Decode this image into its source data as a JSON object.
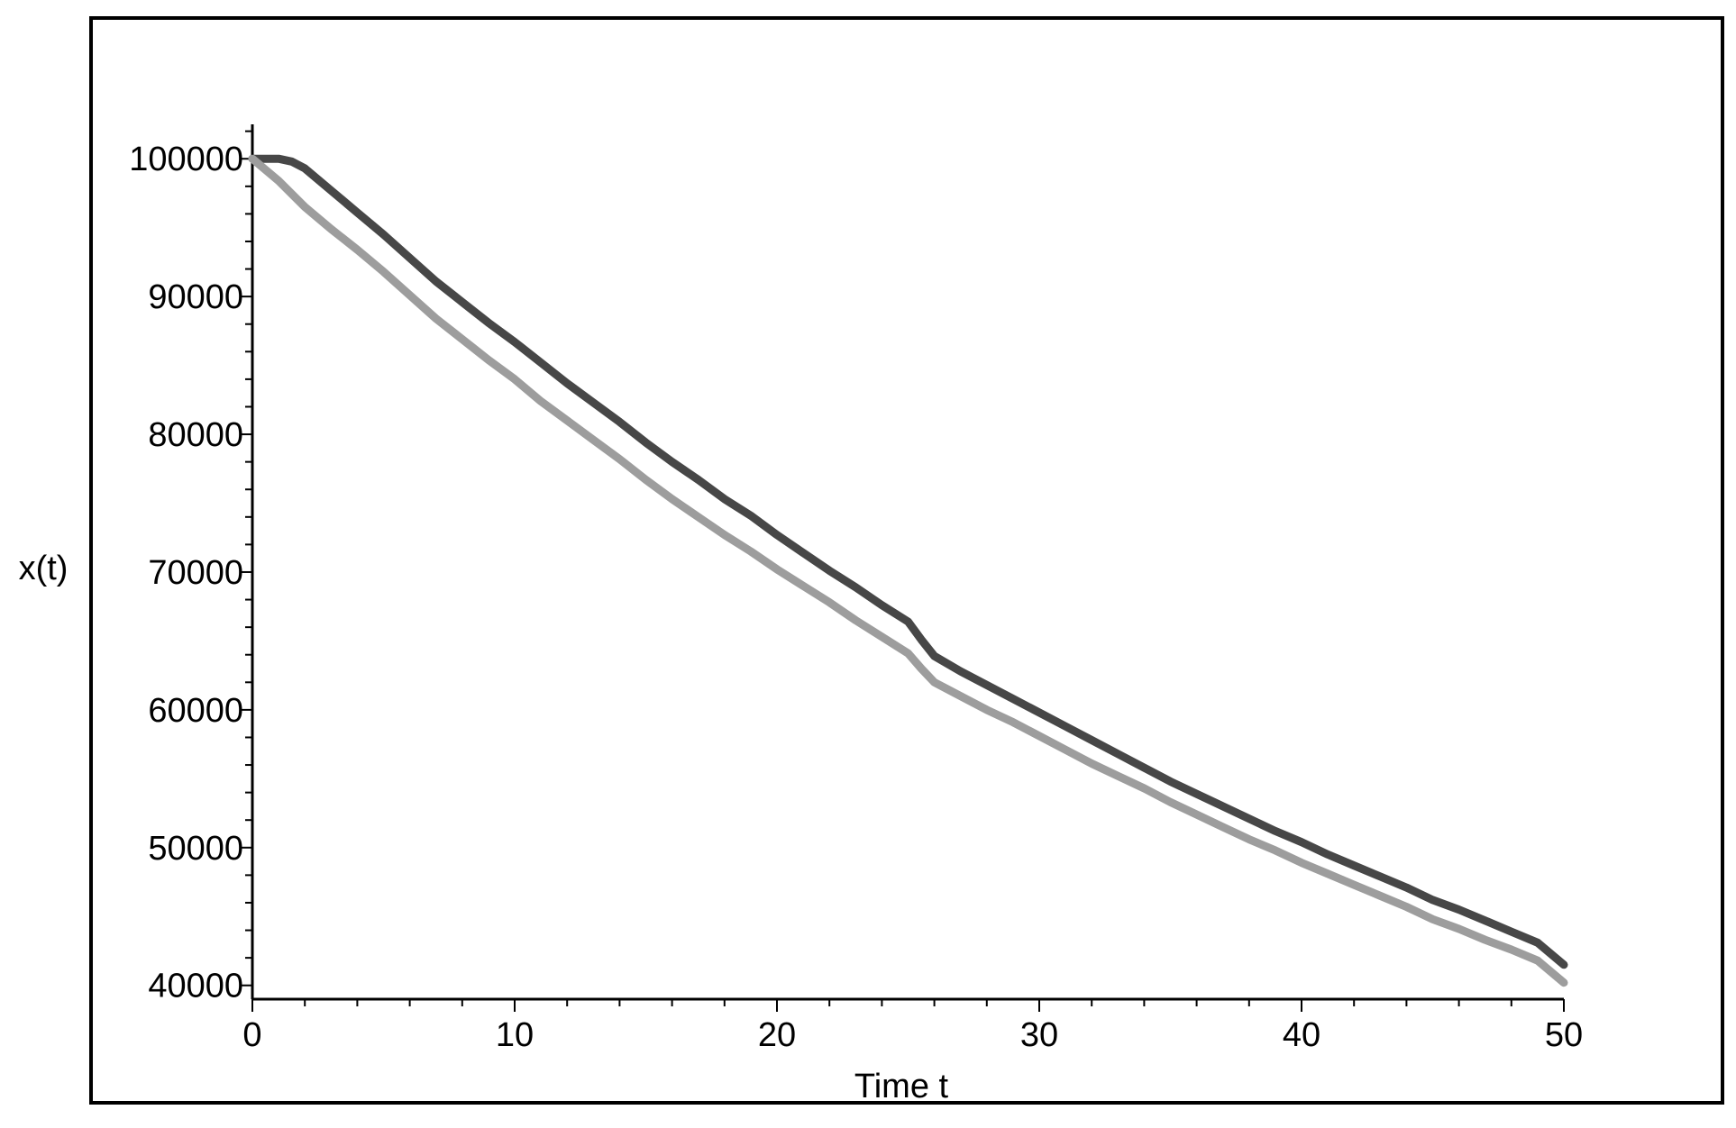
{
  "chart_data": {
    "type": "line",
    "title": "",
    "xlabel": "Time t",
    "ylabel": "x(t)",
    "xlim": [
      0,
      50
    ],
    "ylim": [
      39000,
      102500
    ],
    "x_ticks": [
      0,
      10,
      20,
      30,
      40,
      50
    ],
    "y_ticks": [
      40000,
      50000,
      60000,
      70000,
      80000,
      90000,
      100000
    ],
    "grid": false,
    "legend": "none",
    "series": [
      {
        "color": "#474747",
        "x": [
          0,
          1,
          1.5,
          2,
          3,
          4,
          5,
          6,
          7,
          8,
          9,
          10,
          11,
          12,
          13,
          14,
          15,
          16,
          17,
          18,
          19,
          20,
          21,
          22,
          23,
          24,
          25,
          25.5,
          26,
          27,
          28,
          29,
          30,
          31,
          32,
          33,
          34,
          35,
          36,
          37,
          38,
          39,
          40,
          41,
          42,
          43,
          44,
          45,
          46,
          47,
          48,
          49,
          50
        ],
        "values": [
          100000,
          100000,
          99800,
          99300,
          97700,
          96100,
          94500,
          92800,
          91100,
          89600,
          88100,
          86700,
          85200,
          83700,
          82300,
          80900,
          79400,
          78000,
          76700,
          75300,
          74100,
          72700,
          71400,
          70100,
          68900,
          67600,
          66400,
          65100,
          63900,
          62800,
          61800,
          60800,
          59800,
          58800,
          57800,
          56800,
          55800,
          54800,
          53900,
          53000,
          52100,
          51200,
          50400,
          49500,
          48700,
          47900,
          47100,
          46200,
          45500,
          44700,
          43900,
          43100,
          41500
        ]
      },
      {
        "color": "#9d9d9d",
        "x": [
          0,
          1,
          2,
          3,
          4,
          5,
          6,
          7,
          8,
          9,
          10,
          11,
          12,
          13,
          14,
          15,
          16,
          17,
          18,
          19,
          20,
          21,
          22,
          23,
          24,
          25,
          25.5,
          26,
          27,
          28,
          29,
          30,
          31,
          32,
          33,
          34,
          35,
          36,
          37,
          38,
          39,
          40,
          41,
          42,
          43,
          44,
          45,
          46,
          47,
          48,
          49,
          50
        ],
        "values": [
          100000,
          98400,
          96500,
          94900,
          93400,
          91800,
          90100,
          88400,
          86900,
          85400,
          84000,
          82400,
          81000,
          79600,
          78200,
          76700,
          75300,
          74000,
          72700,
          71500,
          70200,
          69000,
          67800,
          66500,
          65300,
          64100,
          63000,
          62000,
          61000,
          60000,
          59100,
          58100,
          57100,
          56100,
          55200,
          54300,
          53300,
          52400,
          51500,
          50600,
          49800,
          48900,
          48100,
          47300,
          46500,
          45700,
          44800,
          44100,
          43300,
          42600,
          41800,
          40200
        ]
      }
    ]
  }
}
